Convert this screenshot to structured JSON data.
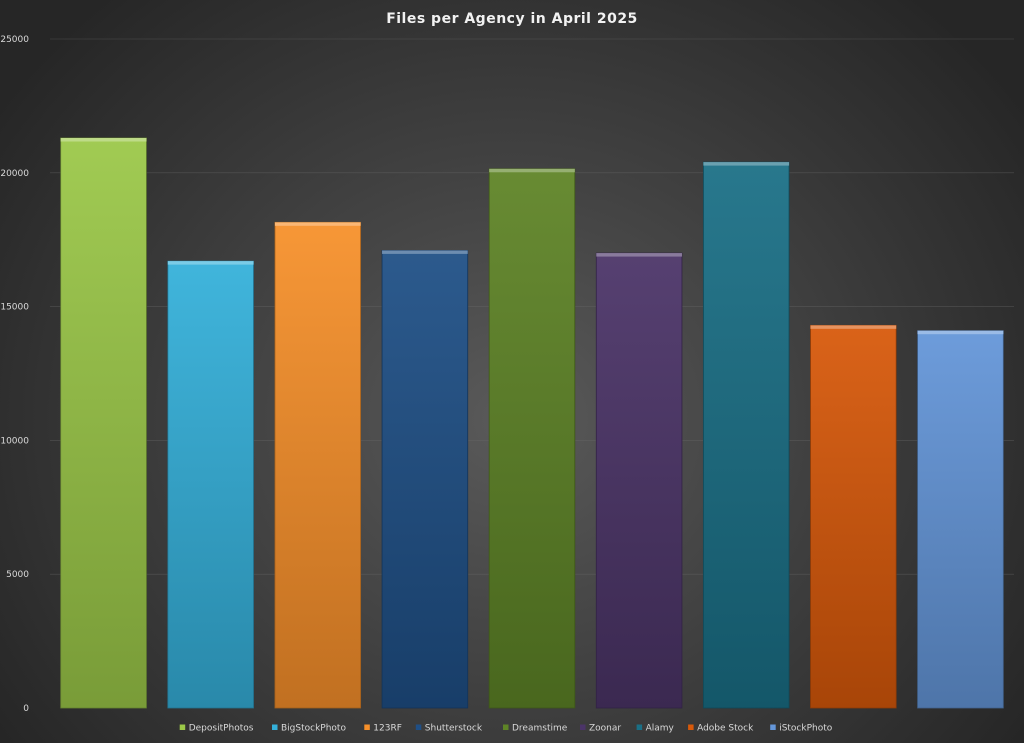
{
  "chart_data": {
    "type": "bar",
    "title": "Files per Agency in April 2025",
    "xlabel": "",
    "ylabel": "",
    "ylim": [
      0,
      25000
    ],
    "yticks": [
      0,
      5000,
      10000,
      15000,
      20000,
      25000
    ],
    "grid": true,
    "legend_position": "bottom",
    "categories": [
      "DepositPhotos",
      "BigStockPhoto",
      "123RF",
      "Shutterstock",
      "Dreamstime",
      "Zoonar",
      "Alamy",
      "Adobe Stock",
      "iStockPhoto"
    ],
    "values": [
      21300,
      16700,
      18150,
      17100,
      20150,
      17000,
      20400,
      14300,
      14100
    ],
    "colors": [
      "#9bc848",
      "#34b0da",
      "#f7902a",
      "#1f4f86",
      "#5e8426",
      "#4b3468",
      "#1a6f86",
      "#d8590a",
      "#6496d9"
    ]
  }
}
